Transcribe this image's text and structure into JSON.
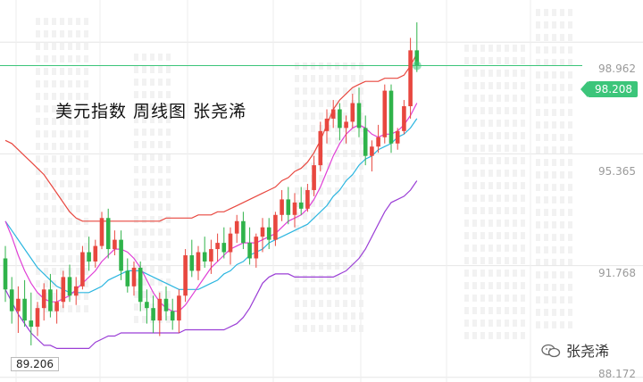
{
  "title": "美元指数  周线图  张尧浠",
  "watermark": {
    "text": "张尧浠",
    "icon": "wechat-icon"
  },
  "price_badge": "98.208",
  "low_label": "89.206",
  "colors": {
    "up": "#e8473f",
    "down": "#2fb34a",
    "bollinger": "#e8473f",
    "ma_pink": "#e040d6",
    "ma_cyan": "#2cb6e0",
    "lower_band": "#9b3fd6",
    "price_line": "#3cc57a"
  },
  "chart_data": {
    "type": "candlestick",
    "y_ticks": [
      "98.962",
      "95.365",
      "91.768",
      "88.172"
    ],
    "y_tick_values": [
      98.962,
      95.365,
      91.768,
      88.172
    ],
    "ylim": [
      88.02,
      100.32
    ],
    "current_price": 98.208,
    "period_low": 89.206,
    "candles": [
      [
        92.0,
        92.4,
        90.6,
        91.0
      ],
      [
        91.0,
        91.4,
        89.9,
        90.3
      ],
      [
        90.3,
        91.1,
        89.6,
        90.7
      ],
      [
        90.7,
        91.3,
        89.8,
        90.0
      ],
      [
        90.0,
        90.9,
        89.2,
        89.8
      ],
      [
        89.8,
        90.6,
        89.5,
        90.4
      ],
      [
        90.4,
        91.2,
        90.0,
        91.0
      ],
      [
        91.0,
        91.5,
        90.1,
        90.3
      ],
      [
        90.3,
        91.0,
        89.9,
        90.6
      ],
      [
        90.6,
        91.6,
        90.4,
        91.4
      ],
      [
        91.4,
        91.8,
        90.6,
        90.8
      ],
      [
        90.8,
        91.4,
        90.5,
        91.1
      ],
      [
        91.1,
        92.4,
        91.0,
        92.2
      ],
      [
        92.2,
        92.7,
        91.6,
        91.9
      ],
      [
        91.9,
        92.6,
        91.7,
        92.4
      ],
      [
        92.4,
        93.5,
        92.3,
        93.3
      ],
      [
        93.3,
        93.6,
        92.0,
        92.3
      ],
      [
        92.3,
        92.9,
        92.1,
        92.6
      ],
      [
        92.6,
        92.9,
        91.3,
        91.6
      ],
      [
        91.6,
        92.0,
        90.9,
        91.1
      ],
      [
        91.1,
        91.9,
        90.8,
        91.7
      ],
      [
        91.7,
        91.9,
        90.3,
        90.6
      ],
      [
        90.6,
        91.0,
        89.9,
        90.4
      ],
      [
        90.4,
        90.8,
        89.6,
        90.0
      ],
      [
        90.0,
        90.9,
        89.5,
        90.7
      ],
      [
        90.7,
        91.1,
        90.0,
        90.3
      ],
      [
        90.3,
        90.7,
        89.7,
        90.0
      ],
      [
        90.0,
        91.0,
        89.6,
        90.8
      ],
      [
        90.8,
        92.3,
        90.6,
        92.1
      ],
      [
        92.1,
        92.6,
        91.4,
        91.6
      ],
      [
        91.6,
        92.4,
        91.3,
        92.2
      ],
      [
        92.2,
        92.7,
        91.7,
        91.9
      ],
      [
        91.9,
        92.6,
        91.5,
        92.3
      ],
      [
        92.3,
        92.8,
        91.9,
        92.5
      ],
      [
        92.5,
        93.0,
        92.0,
        92.2
      ],
      [
        92.2,
        93.0,
        91.8,
        92.8
      ],
      [
        92.8,
        93.4,
        92.5,
        93.2
      ],
      [
        93.2,
        93.5,
        92.3,
        92.5
      ],
      [
        92.5,
        93.0,
        91.8,
        92.0
      ],
      [
        92.0,
        92.8,
        91.7,
        92.7
      ],
      [
        92.7,
        93.3,
        92.2,
        93.0
      ],
      [
        93.0,
        93.3,
        92.3,
        92.6
      ],
      [
        92.6,
        93.5,
        92.4,
        93.4
      ],
      [
        93.4,
        94.2,
        93.2,
        93.9
      ],
      [
        93.9,
        94.3,
        93.1,
        93.4
      ],
      [
        93.4,
        94.1,
        93.0,
        93.8
      ],
      [
        93.8,
        94.3,
        93.4,
        93.6
      ],
      [
        93.6,
        94.4,
        93.5,
        94.2
      ],
      [
        94.2,
        95.3,
        94.0,
        95.0
      ],
      [
        95.0,
        96.4,
        94.8,
        96.1
      ],
      [
        96.1,
        96.8,
        95.7,
        96.5
      ],
      [
        96.5,
        97.1,
        96.2,
        96.8
      ],
      [
        96.8,
        97.0,
        95.8,
        96.2
      ],
      [
        96.2,
        96.6,
        95.7,
        96.4
      ],
      [
        96.4,
        97.3,
        96.2,
        97.0
      ],
      [
        97.0,
        97.5,
        95.9,
        96.2
      ],
      [
        96.2,
        96.6,
        95.0,
        95.3
      ],
      [
        95.3,
        95.8,
        94.8,
        95.6
      ],
      [
        95.6,
        96.3,
        95.4,
        95.9
      ],
      [
        95.9,
        97.6,
        95.7,
        97.4
      ],
      [
        97.4,
        97.6,
        95.4,
        95.7
      ],
      [
        95.7,
        96.2,
        95.5,
        96.1
      ],
      [
        96.1,
        97.1,
        96.0,
        96.9
      ],
      [
        96.9,
        99.1,
        96.5,
        98.7
      ],
      [
        98.7,
        99.6,
        98.0,
        98.208
      ]
    ],
    "bollinger_upper": [
      95.8,
      95.7,
      95.5,
      95.3,
      95.1,
      94.9,
      94.7,
      94.4,
      94.1,
      93.8,
      93.5,
      93.3,
      93.2,
      93.2,
      93.2,
      93.2,
      93.2,
      93.2,
      93.2,
      93.2,
      93.2,
      93.2,
      93.2,
      93.2,
      93.2,
      93.3,
      93.3,
      93.3,
      93.3,
      93.3,
      93.4,
      93.4,
      93.4,
      93.5,
      93.5,
      93.6,
      93.7,
      93.8,
      93.9,
      94.0,
      94.1,
      94.2,
      94.3,
      94.5,
      94.6,
      94.8,
      94.9,
      95.1,
      95.4,
      95.8,
      96.3,
      96.8,
      97.1,
      97.3,
      97.5,
      97.6,
      97.7,
      97.7,
      97.7,
      97.8,
      97.8,
      97.8,
      97.9,
      98.2,
      98.6
    ],
    "ma_pink": [
      93.2,
      92.7,
      92.1,
      91.6,
      91.2,
      90.9,
      90.7,
      90.6,
      90.6,
      90.7,
      90.8,
      91.0,
      91.2,
      91.4,
      91.6,
      91.9,
      92.1,
      92.3,
      92.3,
      92.2,
      92.0,
      91.7,
      91.3,
      90.9,
      90.6,
      90.4,
      90.3,
      90.3,
      90.5,
      90.8,
      91.1,
      91.4,
      91.7,
      91.9,
      92.1,
      92.3,
      92.4,
      92.5,
      92.5,
      92.5,
      92.6,
      92.7,
      92.8,
      93.0,
      93.2,
      93.3,
      93.4,
      93.6,
      93.9,
      94.3,
      94.8,
      95.3,
      95.7,
      96.0,
      96.2,
      96.3,
      96.2,
      96.0,
      95.9,
      96.0,
      96.0,
      96.1,
      96.3,
      96.6,
      97.0
    ],
    "ma_cyan": [
      93.2,
      92.9,
      92.6,
      92.3,
      92.0,
      91.7,
      91.5,
      91.3,
      91.1,
      91.0,
      90.9,
      90.9,
      90.9,
      90.9,
      91.0,
      91.1,
      91.3,
      91.4,
      91.5,
      91.6,
      91.6,
      91.6,
      91.5,
      91.4,
      91.3,
      91.2,
      91.1,
      91.0,
      91.0,
      91.0,
      91.0,
      91.1,
      91.2,
      91.3,
      91.5,
      91.6,
      91.8,
      91.9,
      92.1,
      92.2,
      92.3,
      92.5,
      92.6,
      92.7,
      92.8,
      92.9,
      93.0,
      93.1,
      93.3,
      93.5,
      93.7,
      94.0,
      94.2,
      94.5,
      94.7,
      95.0,
      95.2,
      95.3,
      95.5,
      95.6,
      95.7,
      95.9,
      96.0,
      96.2,
      96.5
    ],
    "lower_band": [
      91.0,
      90.6,
      90.2,
      89.9,
      89.6,
      89.4,
      89.2,
      89.2,
      89.1,
      89.1,
      89.1,
      89.1,
      89.1,
      89.1,
      89.3,
      89.4,
      89.5,
      89.5,
      89.6,
      89.6,
      89.6,
      89.6,
      89.6,
      89.6,
      89.6,
      89.6,
      89.6,
      89.6,
      89.7,
      89.7,
      89.7,
      89.7,
      89.7,
      89.7,
      89.7,
      89.8,
      89.9,
      90.1,
      90.4,
      90.8,
      91.2,
      91.4,
      91.5,
      91.5,
      91.5,
      91.4,
      91.4,
      91.4,
      91.4,
      91.4,
      91.4,
      91.4,
      91.5,
      91.6,
      91.8,
      92.0,
      92.3,
      92.7,
      93.1,
      93.5,
      93.8,
      93.9,
      94.0,
      94.2,
      94.5
    ]
  }
}
